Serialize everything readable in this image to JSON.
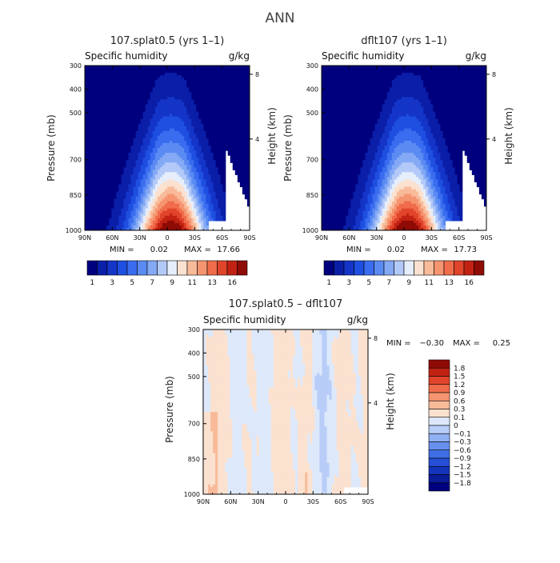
{
  "page": {
    "title": "ANN"
  },
  "chart_data": [
    {
      "type": "heatmap",
      "title": "107.splat0.5 (yrs 1–1)",
      "subtitle_left": "Specific humidity",
      "subtitle_right": "g/kg",
      "xlabel": "",
      "ylabel": "Pressure (mb)",
      "ylabel_right": "Height (km)",
      "x_ticks": [
        "90N",
        "60N",
        "30N",
        "0",
        "30S",
        "60S",
        "90S"
      ],
      "y_ticks": [
        "300",
        "400",
        "500",
        "700",
        "850",
        "1000"
      ],
      "y_ticks_right": [
        "8",
        "4"
      ],
      "ylim": [
        1000,
        300
      ],
      "min_label": "MIN =",
      "min_value": "0.02",
      "max_label": "MAX =",
      "max_value": "17.66",
      "colorbar_ticks": [
        "1",
        "3",
        "5",
        "7",
        "9",
        "11",
        "13",
        "16"
      ],
      "colorbar_colors": [
        "#00007e",
        "#0a1ea8",
        "#1435c8",
        "#1e4fe0",
        "#3a6cf0",
        "#5b8bf2",
        "#84a9f5",
        "#b3c9f7",
        "#e6eefb",
        "#fbe1cf",
        "#f8bb9a",
        "#f59570",
        "#f06c4b",
        "#e0442b",
        "#c22213",
        "#8f0b05"
      ],
      "field_peak": 17.66
    },
    {
      "type": "heatmap",
      "title": "dflt107 (yrs 1–1)",
      "subtitle_left": "Specific humidity",
      "subtitle_right": "g/kg",
      "xlabel": "",
      "ylabel": "Pressure (mb)",
      "ylabel_right": "Height (km)",
      "x_ticks": [
        "90N",
        "60N",
        "30N",
        "0",
        "30S",
        "60S",
        "90S"
      ],
      "y_ticks": [
        "300",
        "400",
        "500",
        "700",
        "850",
        "1000"
      ],
      "y_ticks_right": [
        "8",
        "4"
      ],
      "ylim": [
        1000,
        300
      ],
      "min_label": "MIN =",
      "min_value": "0.02",
      "max_label": "MAX =",
      "max_value": "17.73",
      "colorbar_ticks": [
        "1",
        "3",
        "5",
        "7",
        "9",
        "11",
        "13",
        "16"
      ],
      "colorbar_colors": [
        "#00007e",
        "#0a1ea8",
        "#1435c8",
        "#1e4fe0",
        "#3a6cf0",
        "#5b8bf2",
        "#84a9f5",
        "#b3c9f7",
        "#e6eefb",
        "#fbe1cf",
        "#f8bb9a",
        "#f59570",
        "#f06c4b",
        "#e0442b",
        "#c22213",
        "#8f0b05"
      ],
      "field_peak": 17.73
    },
    {
      "type": "heatmap",
      "title": "107.splat0.5 – dflt107",
      "subtitle_left": "Specific humidity",
      "subtitle_right": "g/kg",
      "xlabel": "",
      "ylabel": "Pressure (mb)",
      "ylabel_right": "Height (km)",
      "x_ticks": [
        "90N",
        "60N",
        "30N",
        "0",
        "30S",
        "60S",
        "90S"
      ],
      "y_ticks": [
        "300",
        "400",
        "500",
        "700",
        "850",
        "1000"
      ],
      "y_ticks_right": [
        "8",
        "4"
      ],
      "ylim": [
        1000,
        300
      ],
      "min_label": "MIN =",
      "min_value": "−0.30",
      "max_label": "MAX =",
      "max_value": "0.25",
      "colorbar_ticks": [
        "1.8",
        "1.5",
        "1.2",
        "0.9",
        "0.6",
        "0.3",
        "0.1",
        "0",
        "−0.1",
        "−0.3",
        "−0.6",
        "−0.9",
        "−1.2",
        "−1.5",
        "−1.8"
      ],
      "colorbar_colors": [
        "#8f0b05",
        "#c22213",
        "#e0442b",
        "#f06c4b",
        "#f59570",
        "#f8bb9a",
        "#fbe1cf",
        "#dde9fb",
        "#b8cdf7",
        "#8fb0f3",
        "#6690ee",
        "#3f6fe4",
        "#2550d6",
        "#1434bb",
        "#0a1c98",
        "#00007e"
      ]
    }
  ]
}
